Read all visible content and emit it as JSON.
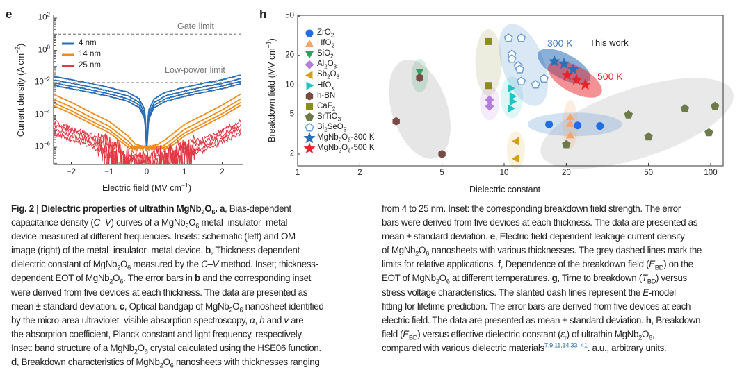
{
  "panel_e": {
    "label": "e",
    "chart_data": {
      "type": "line",
      "xlabel": "Electric field (MV cm^{−1})",
      "ylabel": "Current density (A cm^{−2})",
      "xlim": [
        -2.5,
        2.5
      ],
      "ylim": [
        1e-07,
        100
      ],
      "yscale": "log",
      "x_ticks": [
        "−2",
        "−1",
        "0",
        "1",
        "2"
      ],
      "x_tick_values": [
        -2,
        -1,
        0,
        1,
        2
      ],
      "y_ticks": [
        "10^{2}",
        "10^{0}",
        "10^{−2}",
        "10^{−4}",
        "10^{−6}"
      ],
      "y_tick_values": [
        100,
        1,
        0.01,
        0.0001,
        1e-06
      ],
      "reference_lines": [
        {
          "label": "Gate limit",
          "value": 10
        },
        {
          "label": "Low-power limit",
          "value": 0.01
        }
      ],
      "series": [
        {
          "name": "4 nm",
          "color": "#2a6db5",
          "x": [
            -2.5,
            -2,
            -1.5,
            -1,
            -0.5,
            -0.2,
            -0.05,
            0,
            0.05,
            0.2,
            0.5,
            1,
            1.5,
            2,
            2.5
          ],
          "values": [
            0.025,
            0.015,
            0.009,
            0.005,
            0.0025,
            0.001,
            0.0002,
            2e-06,
            0.0002,
            0.001,
            0.0025,
            0.005,
            0.009,
            0.015,
            0.03
          ],
          "device_scale": [
            1,
            0.6,
            0.4,
            0.28
          ]
        },
        {
          "name": "14 nm",
          "color": "#f08c1e",
          "x": [
            -2.5,
            -2,
            -1.5,
            -1,
            -0.5,
            -0.3,
            0,
            0.3,
            0.5,
            1,
            1.5,
            2,
            2.5
          ],
          "values": [
            0.002,
            0.0006,
            0.00015,
            4e-05,
            5e-06,
            1.5e-06,
            1e-06,
            1.5e-06,
            3e-06,
            2.5e-05,
            0.0001,
            0.0004,
            0.002
          ],
          "device_scale": [
            1,
            0.5,
            0.3,
            0.2
          ]
        },
        {
          "name": "25 nm",
          "color": "#e03a44",
          "x": [
            -2.5,
            -2,
            -1.5,
            -1,
            -0.5,
            0,
            0.5,
            1,
            1.5,
            2,
            2.5
          ],
          "values": [
            4e-05,
            1.5e-05,
            6e-06,
            2e-06,
            5e-07,
            3e-07,
            5e-07,
            1.5e-06,
            3e-06,
            1e-05,
            4e-05
          ],
          "device_scale": [
            1,
            0.6,
            0.35,
            0.2
          ]
        }
      ]
    }
  },
  "panel_h": {
    "label": "h",
    "annotations": {
      "k300": "300 K",
      "this_work": "This work",
      "k500": "500 K"
    },
    "chart_data": {
      "type": "scatter",
      "xlabel": "Dielectric constant",
      "ylabel": "Breakdown field (MV cm^{−1})",
      "xscale": "log",
      "yscale": "log",
      "xlim": [
        1,
        115
      ],
      "ylim": [
        1.5,
        50
      ],
      "x_ticks": [
        "1",
        "2",
        "5",
        "10",
        "20",
        "50",
        "100"
      ],
      "x_tick_values": [
        1,
        2,
        5,
        10,
        20,
        50,
        100
      ],
      "y_ticks": [
        "50",
        "20",
        "10",
        "5",
        "2"
      ],
      "y_tick_values": [
        50,
        20,
        10,
        5,
        2
      ],
      "legend_position": "top-left",
      "series": [
        {
          "name": "ZrO_{2}",
          "marker": "circle",
          "color": "#1f6fe0",
          "points": [
            [
              16.5,
              4.0
            ],
            [
              22.7,
              3.9
            ],
            [
              29.1,
              3.85
            ]
          ]
        },
        {
          "name": "HfO_{2}",
          "marker": "triangle-up",
          "color": "#f5a46a",
          "points": [
            [
              20.9,
              4.75
            ],
            [
              20.9,
              4.05
            ],
            [
              20.9,
              3.1
            ]
          ]
        },
        {
          "name": "SiO_{2}",
          "marker": "triangle-down",
          "color": "#2ca25f",
          "points": [
            [
              3.9,
              13.6
            ]
          ]
        },
        {
          "name": "Al_{2}O_{3}",
          "marker": "diamond",
          "color": "#b57edc",
          "points": [
            [
              8.5,
              7.1
            ],
            [
              8.5,
              6.1
            ]
          ]
        },
        {
          "name": "Sb_{2}O_{3}",
          "marker": "triangle-left",
          "color": "#d4a017",
          "points": [
            [
              11.4,
              2.7
            ],
            [
              11.4,
              1.8
            ]
          ]
        },
        {
          "name": "HfO_{x}",
          "marker": "triangle-right",
          "color": "#1fc4c4",
          "points": [
            [
              10.8,
              9.3
            ],
            [
              11.0,
              7.7
            ],
            [
              11.0,
              6.8
            ],
            [
              10.8,
              5.8
            ]
          ]
        },
        {
          "name": "h-BN",
          "marker": "hexagon",
          "color": "#7a4a45",
          "points": [
            [
              3.9,
              11.9
            ],
            [
              3.0,
              4.3
            ],
            [
              5.0,
              2.0
            ]
          ]
        },
        {
          "name": "CaF_{2}",
          "marker": "square",
          "color": "#8c8c1a",
          "points": [
            [
              8.4,
              27.6
            ],
            [
              8.4,
              9.9
            ]
          ]
        },
        {
          "name": "SrTiO_{3}",
          "marker": "pentagon",
          "color": "#6f7a4a",
          "points": [
            [
              20,
              2.5
            ],
            [
              40,
              5.0
            ],
            [
              50,
              3.0
            ],
            [
              75,
              5.75
            ],
            [
              98,
              3.3
            ],
            [
              105,
              6.1
            ]
          ]
        },
        {
          "name": "Bi_{2}SeO_{5}",
          "marker": "pentagon-open",
          "color": "#6a9fd8",
          "points": [
            [
              10.5,
              29.9
            ],
            [
              12.1,
              29.9
            ],
            [
              10.9,
              20.5
            ],
            [
              10.9,
              18.4
            ],
            [
              11.7,
              15.6
            ],
            [
              11.9,
              14.4
            ],
            [
              12.1,
              10.9
            ],
            [
              14.2,
              10.1
            ],
            [
              15.6,
              11.6
            ]
          ]
        },
        {
          "name": "MgNb_{2}O_{6}-300 K",
          "marker": "star",
          "color": "#2a6fb8",
          "points": [
            [
              17.5,
              17.4
            ],
            [
              19.5,
              16.5
            ],
            [
              21.6,
              14.4
            ]
          ]
        },
        {
          "name": "MgNb_{2}O_{6}-500 K",
          "marker": "star",
          "color": "#e8242a",
          "points": [
            [
              20.2,
              12.6
            ],
            [
              22.4,
              11.3
            ],
            [
              24.7,
              10.1
            ]
          ]
        }
      ]
    }
  },
  "caption": {
    "left": [
      "**Fig. 2 | Dielectric properties of ultrathin MgNb_{2}O_{6}. a**, Bias-dependent",
      "capacitance density (*C*–*V*) curves of a MgNb_{2}O_{6} metal–insulator–metal",
      "device measured at different frequencies. Insets: schematic (left) and OM",
      "image (right) of the metal–insulator–metal device. **b**, Thickness-dependent",
      "dielectric constant of MgNb_{2}O_{6} measured by the *C*–*V* method. Inset; thickness-",
      "dependent EOT of MgNb_{2}O_{6}. The error bars in **b** and the corresponding inset",
      "were derived from five devices at each thickness. The data are presented as",
      "mean ± standard deviation. **c**, Optical bandgap of MgNb_{2}O_{6} nanosheet identified",
      "by the micro-area ultraviolet–visible absorption spectroscopy, *α*, *h* and *v* are",
      "the absorption coefficient, Planck constant and light frequency, respectively.",
      "Inset: band structure of a MgNb_{2}O_{6} crystal calculated using the HSE06 function.",
      "**d**, Breakdown characteristics of MgNb_{2}O_{6} nanosheets with thicknesses ranging"
    ],
    "right": [
      "from 4 to 25 nm. Inset: the corresponding breakdown field strength. The error",
      "bars were derived from five devices at each thickness. The data are presented as",
      "mean ± standard deviation. **e**, Electric-field-dependent leakage current density",
      "of MgNb_{2}O_{6} nanosheets with various thicknesses. The grey dashed lines mark the",
      "limits for relative applications. **f**, Dependence of the breakdown field (*E*_{BD}) on the",
      "EOT of MgNb_{2}O_{6} at different temperatures. **g**, Time to breakdown (*T*_{BD}) versus",
      "stress voltage characteristics. The slanted dash lines represent the *E*-model",
      "fitting for lifetime prediction. The error bars are derived from five devices at each",
      "electric field. The data are presented as mean ± standard deviation. **h**, Breakdown",
      "field (*E*_{BD}) versus effective dielectric constant (*ε*_{r}) of ultrathin MgNb_{2}O_{6},",
      "compared with various dielectric materials^{7,9,11,14,33–41}. a.u., arbitrary units."
    ]
  }
}
